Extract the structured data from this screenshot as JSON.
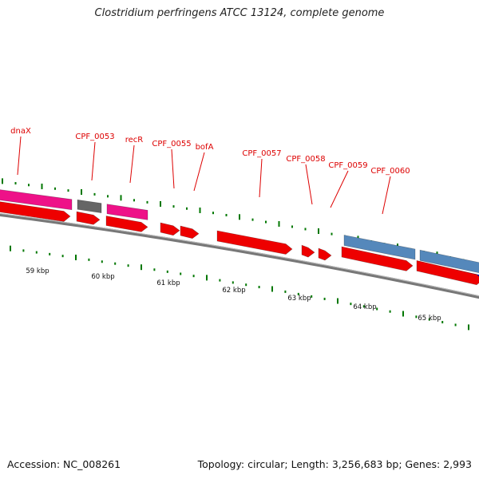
{
  "header": {
    "title": "Clostridium perfringens ATCC 13124, complete genome"
  },
  "footer": {
    "accession": "Accession: NC_008261",
    "summary": "Topology: circular; Length: 3,256,683 bp; Genes: 2,993"
  },
  "colors": {
    "cds": "#ee0000",
    "pink": "#ee1188",
    "gray": "#666666",
    "steel": "#5588bb",
    "blue": "#0000dd",
    "tick": "#007700",
    "backbone": "#777777",
    "label": "#dd0000"
  },
  "map": {
    "gene_labels": [
      "dnaX",
      "CPF_0053",
      "recR",
      "CPF_0055",
      "bofA",
      "CPF_0057",
      "CPF_0058",
      "CPF_0059",
      "CPF_0060"
    ],
    "kbp_labels": [
      "59 kbp",
      "60 kbp",
      "61 kbp",
      "62 kbp",
      "63 kbp",
      "64 kbp",
      "65 kbp"
    ]
  }
}
